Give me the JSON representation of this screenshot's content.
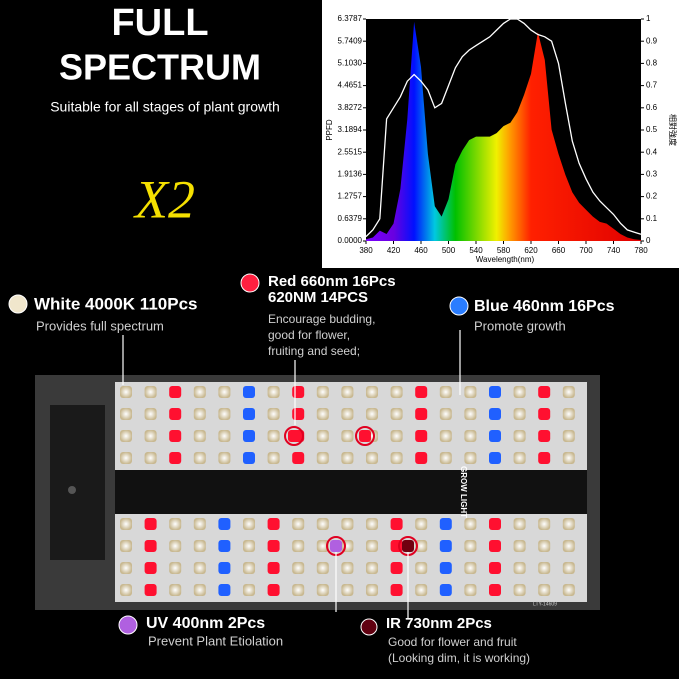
{
  "headline": {
    "lines": [
      "FULL",
      "SPECTRUM"
    ],
    "subtitle": "Suitable for all stages of plant growth",
    "multiplier": "X2"
  },
  "spectrum_chart": {
    "type": "area",
    "xlabel": "Wavelength(nm)",
    "ylabel": "PPFD",
    "y2label": "相對強度",
    "x": [
      380,
      390,
      400,
      410,
      420,
      430,
      440,
      450,
      460,
      470,
      480,
      490,
      500,
      510,
      520,
      530,
      540,
      550,
      560,
      570,
      580,
      590,
      600,
      610,
      620,
      630,
      640,
      650,
      660,
      670,
      680,
      690,
      700,
      710,
      720,
      730,
      740,
      750,
      760,
      770,
      780
    ],
    "series": [
      {
        "values": [
          0.05,
          0.1,
          0.3,
          0.2,
          0.5,
          1.5,
          3.5,
          6.3,
          5.0,
          2.5,
          1.0,
          0.7,
          1.2,
          2.2,
          2.6,
          2.9,
          3.0,
          3.0,
          3.0,
          3.1,
          3.3,
          3.4,
          3.7,
          4.2,
          4.8,
          6.0,
          5.2,
          3.2,
          2.5,
          1.9,
          1.4,
          1.1,
          0.9,
          0.7,
          0.55,
          0.5,
          0.35,
          0.2,
          0.1,
          0.05,
          0.03
        ]
      },
      {
        "axis": "y2",
        "color": "#ffffff",
        "values": [
          0.02,
          0.05,
          0.1,
          0.55,
          0.6,
          0.65,
          0.72,
          0.75,
          0.72,
          0.68,
          0.6,
          0.62,
          0.7,
          0.78,
          0.83,
          0.86,
          0.88,
          0.9,
          0.92,
          0.95,
          0.98,
          1.0,
          1.0,
          0.98,
          0.95,
          0.93,
          0.92,
          0.9,
          0.8,
          0.62,
          0.45,
          0.35,
          0.28,
          0.22,
          0.18,
          0.15,
          0.12,
          0.08,
          0.05,
          0.04,
          0.03
        ]
      }
    ],
    "xlim": [
      380,
      780
    ],
    "xticks": [
      380,
      420,
      460,
      500,
      540,
      580,
      620,
      660,
      700,
      740,
      780
    ],
    "ylim": [
      0,
      6.3787
    ],
    "yticks": [
      {
        "value": 0,
        "label": "0.0000"
      },
      0.6379,
      1.2757,
      1.9136,
      2.5515,
      3.1894,
      3.8272,
      4.4651,
      {
        "value": 5.103,
        "label": "5.1030"
      },
      5.7409,
      6.3787
    ],
    "y2lim": [
      0,
      1
    ],
    "y2ticks": [
      0,
      0.1,
      0.2,
      0.3,
      0.4,
      0.5,
      0.6,
      0.7,
      0.8,
      0.9,
      1
    ]
  },
  "callouts": {
    "white": {
      "title": "White 4000K 110Pcs",
      "text": [
        "Provides full spectrum"
      ]
    },
    "red": {
      "title": [
        "Red 660nm 16Pcs",
        "620NM 14PCS"
      ],
      "text": [
        "Encourage budding,",
        "good for flower,",
        "fruiting and seed;"
      ]
    },
    "blue": {
      "title": "Blue 460nm 16Pcs",
      "text": [
        "Promote growth"
      ]
    },
    "uv": {
      "title": "UV 400nm 2Pcs",
      "text": [
        "Prevent Plant Etiolation"
      ]
    },
    "ir": {
      "title": "IR 730nm 2Pcs",
      "text": [
        "Good for flower and fruit",
        "(Looking dim, it is working)"
      ]
    }
  },
  "panel": {
    "label": "GROW LIGHT",
    "model": "LTY-14609"
  }
}
